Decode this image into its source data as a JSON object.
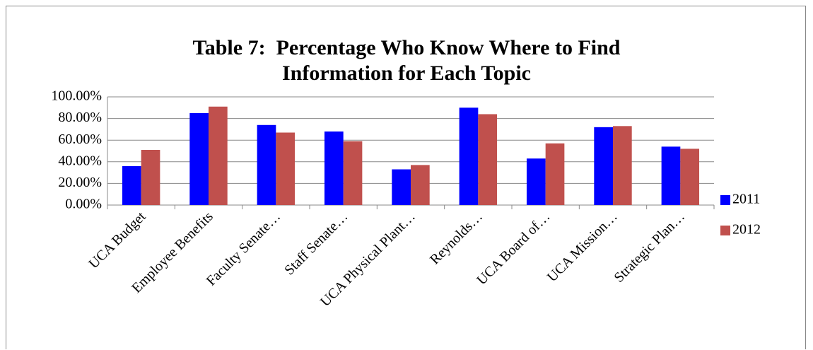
{
  "chart_data": {
    "type": "bar",
    "title": "Table 7:  Percentage Who Know Where to Find Information for Each Topic",
    "categories": [
      "UCA Budget",
      "Employee Benefits",
      "Faculty Senate…",
      "Staff Senate…",
      "UCA Physical Plant…",
      "Reynolds…",
      "UCA Board of…",
      "UCA Mission…",
      "Strategic Plan…"
    ],
    "series": [
      {
        "name": "2011",
        "color": "#0000ff",
        "values": [
          36,
          85,
          74,
          68,
          33,
          90,
          43,
          72,
          54
        ]
      },
      {
        "name": "2012",
        "color": "#c0504d",
        "values": [
          51,
          91,
          67,
          59,
          37,
          84,
          57,
          73,
          52
        ]
      }
    ],
    "ylim": [
      0,
      100
    ],
    "yticks": [
      {
        "value": 0,
        "label": "0.00%"
      },
      {
        "value": 20,
        "label": "20.00%"
      },
      {
        "value": 40,
        "label": "40.00%"
      },
      {
        "value": 60,
        "label": "60.00%"
      },
      {
        "value": 80,
        "label": "80.00%"
      },
      {
        "value": 100,
        "label": "100.00%"
      }
    ],
    "grid": true,
    "legend": "right"
  }
}
